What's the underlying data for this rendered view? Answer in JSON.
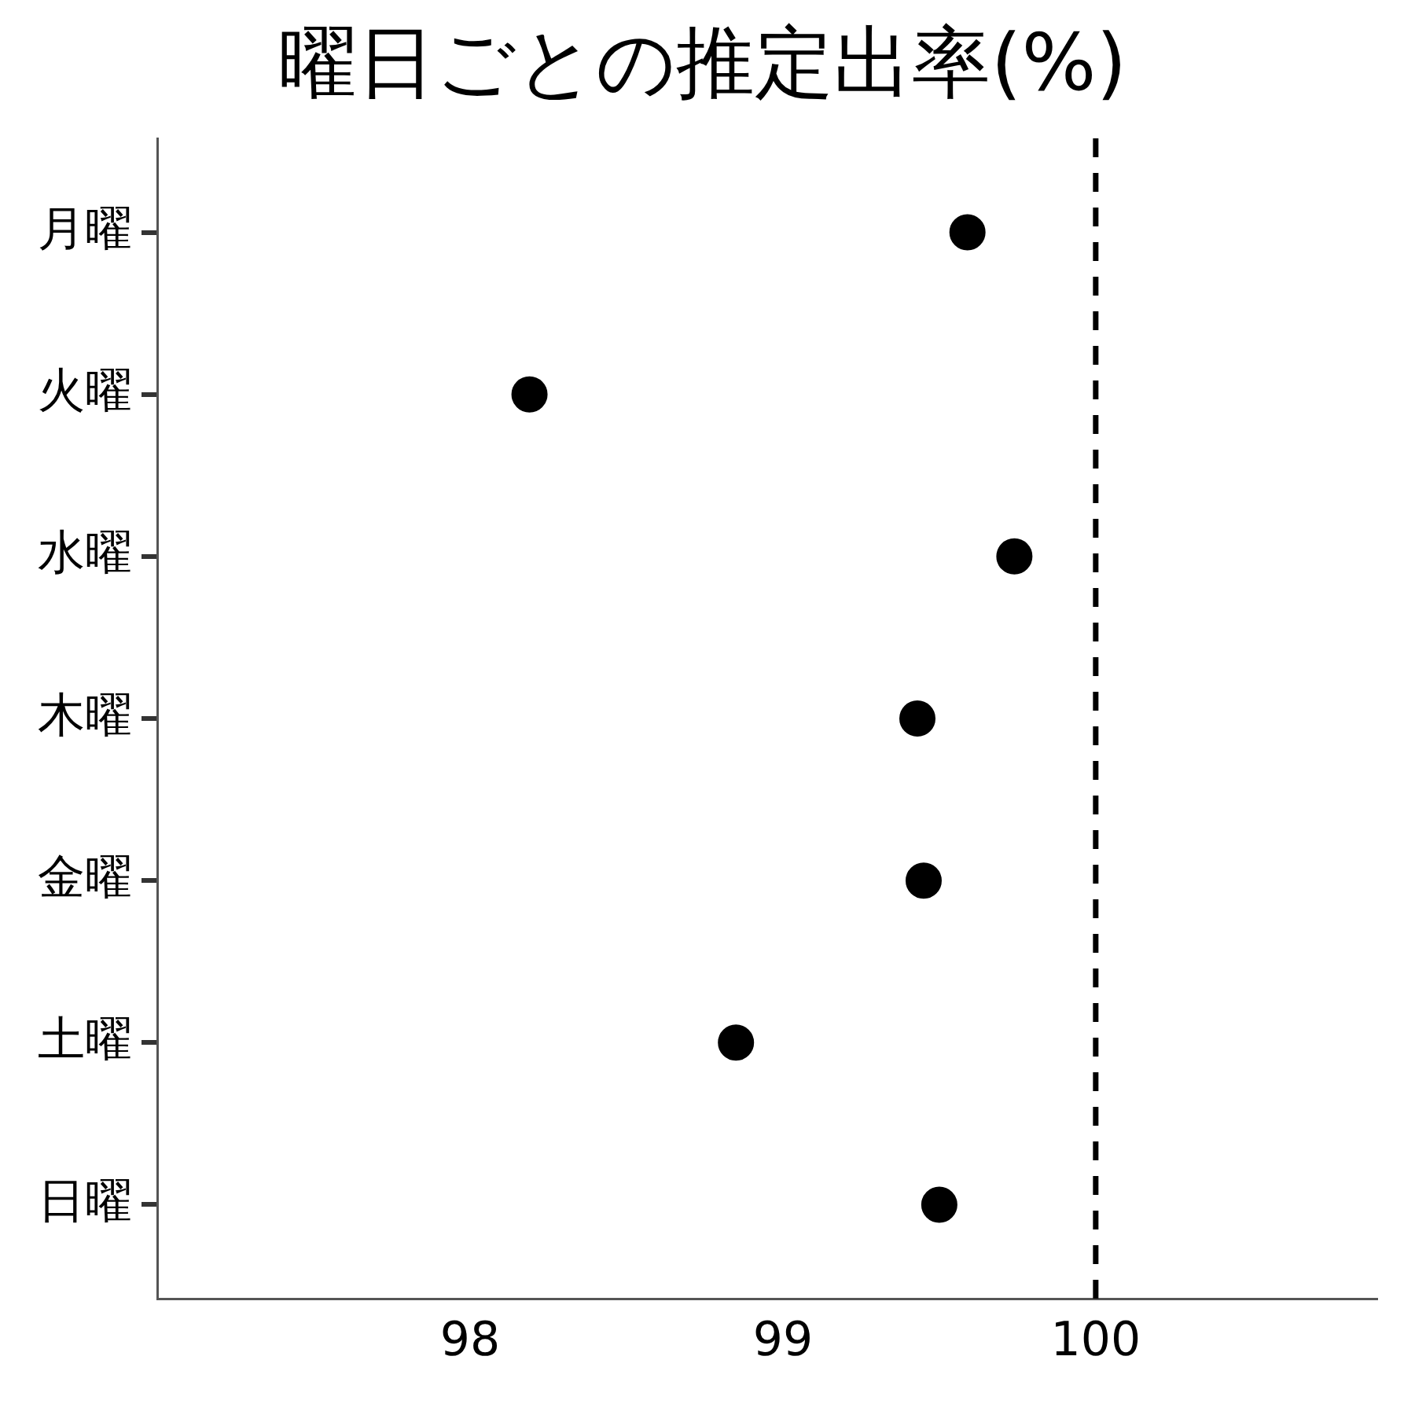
{
  "chart_data": {
    "type": "scatter",
    "title": "曜日ごとの推定出率(%)",
    "categories": [
      "月曜",
      "火曜",
      "水曜",
      "木曜",
      "金曜",
      "土曜",
      "日曜"
    ],
    "values": [
      99.59,
      98.19,
      99.74,
      99.43,
      99.45,
      98.85,
      99.5
    ],
    "color": "#000000",
    "orientation": "horizontal",
    "marker": "circle",
    "xlim": [
      97.0,
      100.9
    ],
    "xticks": [
      98,
      99,
      100
    ],
    "ref_lines": [
      {
        "axis": "x",
        "value": 100,
        "color": "#000000",
        "line_style": "dashed"
      }
    ],
    "grid": false,
    "legend": false
  }
}
